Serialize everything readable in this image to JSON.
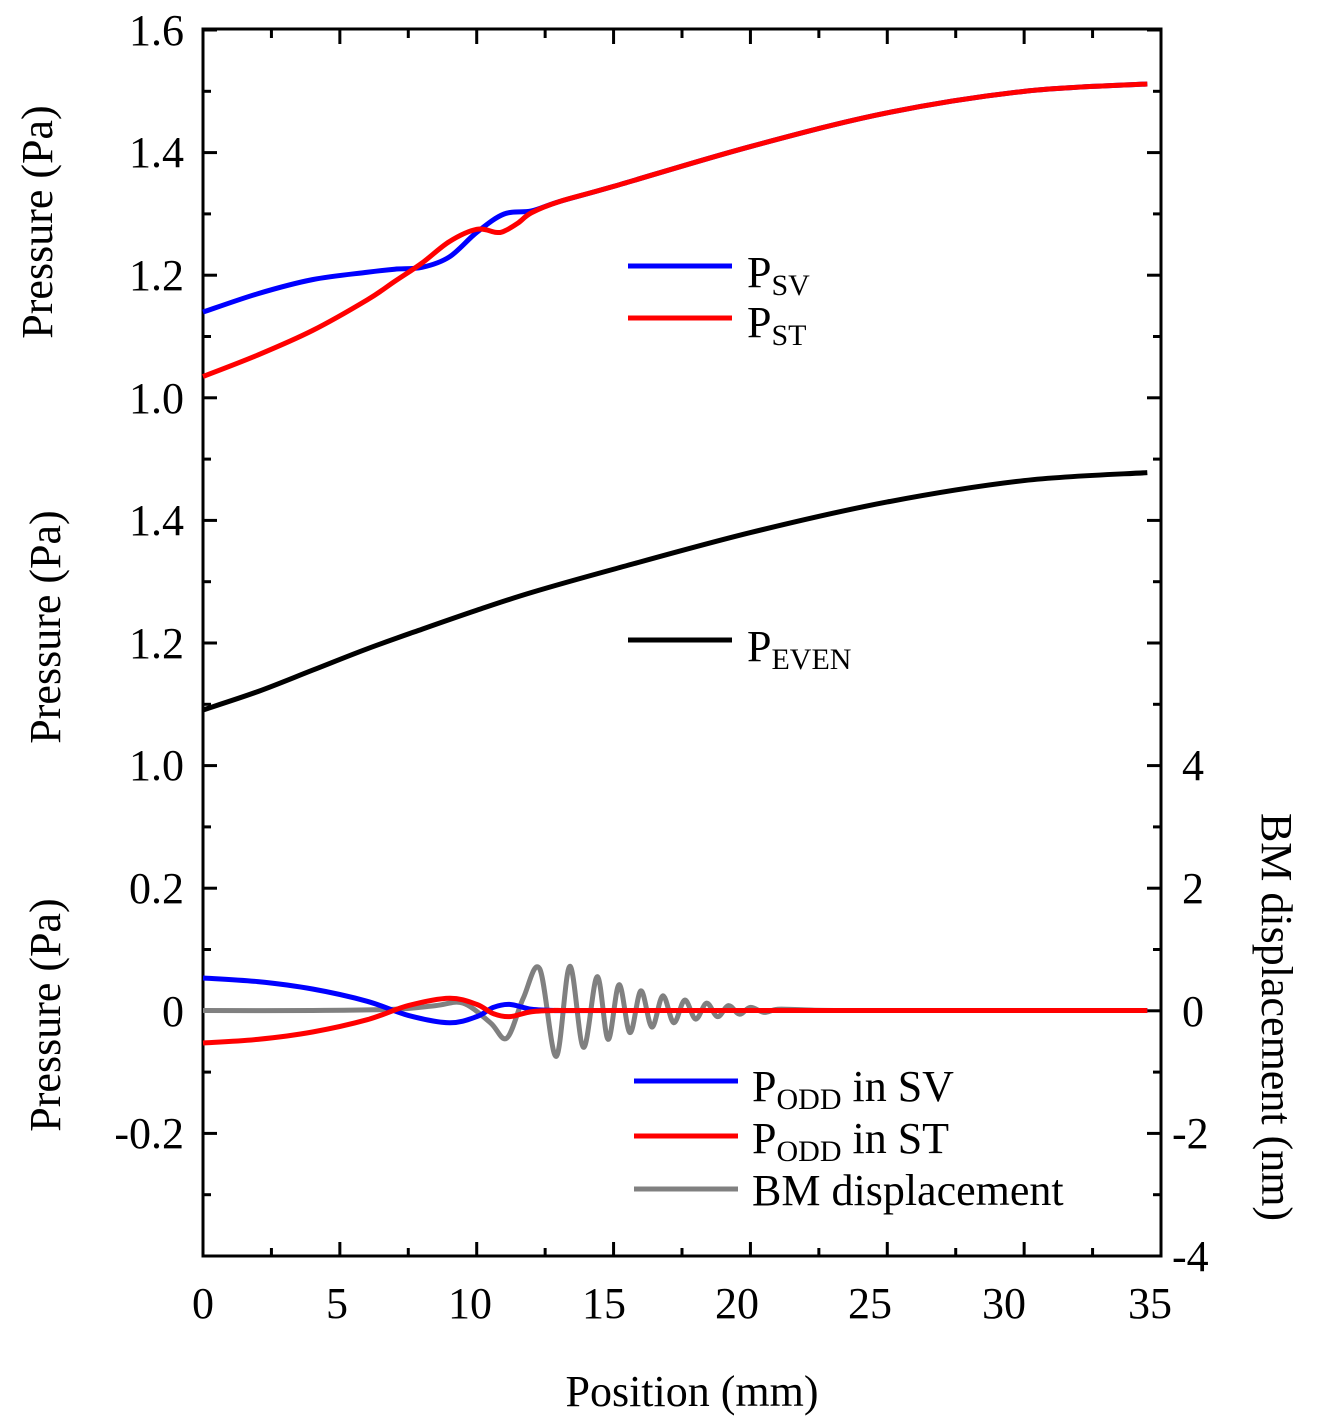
{
  "chart_data": {
    "type": "line",
    "x_axis": {
      "label": "Position (mm)",
      "range": [
        0,
        35
      ],
      "ticks": [
        "0",
        "5",
        "10",
        "15",
        "20",
        "25",
        "30",
        "35"
      ]
    },
    "right_axis": {
      "label": "BM displacement (nm)",
      "range": [
        -4,
        4
      ],
      "ticks": [
        "4",
        "2",
        "0",
        "-2",
        "-4"
      ]
    },
    "panels": [
      {
        "name": "top",
        "ylabel": "Pressure (Pa)",
        "ylim": [
          1.0,
          1.6
        ],
        "tick_labels": [
          "1.6",
          "1.4",
          "1.2",
          "1.0"
        ],
        "legend": [
          {
            "main": "P",
            "sub": "SV",
            "suffix": "",
            "color": "#0000ff"
          },
          {
            "main": "P",
            "sub": "ST",
            "suffix": "",
            "color": "#ff0000"
          }
        ],
        "series": [
          {
            "name": "P_SV",
            "color": "#0000ff",
            "x": [
              0,
              2,
              4,
              6,
              7,
              8,
              9,
              10,
              11,
              12,
              13,
              15,
              20,
              25,
              30,
              34.5
            ],
            "y": [
              1.14,
              1.17,
              1.193,
              1.205,
              1.21,
              1.213,
              1.23,
              1.27,
              1.3,
              1.305,
              1.32,
              1.345,
              1.41,
              1.465,
              1.5,
              1.512
            ]
          },
          {
            "name": "P_ST",
            "color": "#ff0000",
            "x": [
              0,
              2,
              4,
              6,
              7,
              8,
              9,
              10,
              10.7,
              11,
              11.5,
              12,
              13,
              15,
              20,
              25,
              30,
              34.5
            ],
            "y": [
              1.035,
              1.07,
              1.11,
              1.16,
              1.19,
              1.22,
              1.255,
              1.275,
              1.27,
              1.272,
              1.285,
              1.302,
              1.32,
              1.345,
              1.41,
              1.465,
              1.5,
              1.512
            ]
          }
        ]
      },
      {
        "name": "middle",
        "ylabel": "Pressure (Pa)",
        "ylim": [
          1.0,
          1.6
        ],
        "tick_labels": [
          "1.4",
          "1.2",
          "1.0"
        ],
        "legend": [
          {
            "main": "P",
            "sub": "EVEN",
            "suffix": "",
            "color": "#000000"
          }
        ],
        "series": [
          {
            "name": "P_EVEN",
            "color": "#000000",
            "x": [
              0,
              2,
              4,
              6,
              8,
              10,
              12,
              15,
              20,
              25,
              30,
              34.5
            ],
            "y": [
              1.09,
              1.12,
              1.155,
              1.19,
              1.222,
              1.253,
              1.282,
              1.32,
              1.38,
              1.43,
              1.465,
              1.478
            ]
          }
        ]
      },
      {
        "name": "bottom",
        "ylabel": "Pressure (Pa)",
        "ylim": [
          -0.4,
          0.4
        ],
        "tick_labels": [
          "0.2",
          "0",
          "-0.2"
        ],
        "legend": [
          {
            "main": "P",
            "sub": "ODD",
            "suffix": " in SV",
            "color": "#0000ff"
          },
          {
            "main": "P",
            "sub": "ODD",
            "suffix": " in ST",
            "color": "#ff0000"
          },
          {
            "main": "BM displacement",
            "sub": "",
            "suffix": "",
            "color": "#808080"
          }
        ],
        "series": [
          {
            "name": "P_ODD in SV",
            "color": "#0000ff",
            "axis": "left",
            "x": [
              0,
              2,
              4,
              6,
              7.5,
              9,
              10,
              10.6,
              11.2,
              12,
              13,
              15,
              34.5
            ],
            "y": [
              0.053,
              0.047,
              0.035,
              0.015,
              -0.008,
              -0.02,
              -0.01,
              0.005,
              0.01,
              0.002,
              0,
              0,
              0
            ]
          },
          {
            "name": "P_ODD in ST",
            "color": "#ff0000",
            "axis": "left",
            "x": [
              0,
              2,
              4,
              6,
              7.5,
              9,
              10,
              10.6,
              11.2,
              12,
              13,
              15,
              34.5
            ],
            "y": [
              -0.053,
              -0.047,
              -0.035,
              -0.015,
              0.008,
              0.02,
              0.01,
              -0.005,
              -0.01,
              -0.002,
              0,
              0,
              0
            ]
          },
          {
            "name": "BM displacement",
            "color": "#808080",
            "axis": "right",
            "x": [
              0,
              4,
              7,
              8.5,
              9.5,
              10.5,
              11.1,
              11.7,
              12.3,
              12.9,
              13.4,
              13.9,
              14.4,
              14.8,
              15.2,
              15.6,
              16.0,
              16.4,
              16.8,
              17.2,
              17.6,
              18.0,
              18.4,
              18.8,
              19.2,
              19.6,
              20.0,
              20.5,
              21.0,
              22.0,
              24.0,
              34.5
            ],
            "y": [
              0,
              0,
              0.02,
              0.08,
              0.12,
              -0.2,
              -0.45,
              0.2,
              0.68,
              -0.75,
              0.72,
              -0.6,
              0.55,
              -0.47,
              0.42,
              -0.36,
              0.32,
              -0.27,
              0.24,
              -0.2,
              0.17,
              -0.14,
              0.12,
              -0.1,
              0.08,
              -0.06,
              0.05,
              -0.03,
              0.02,
              0.01,
              0,
              0
            ]
          }
        ]
      }
    ]
  }
}
